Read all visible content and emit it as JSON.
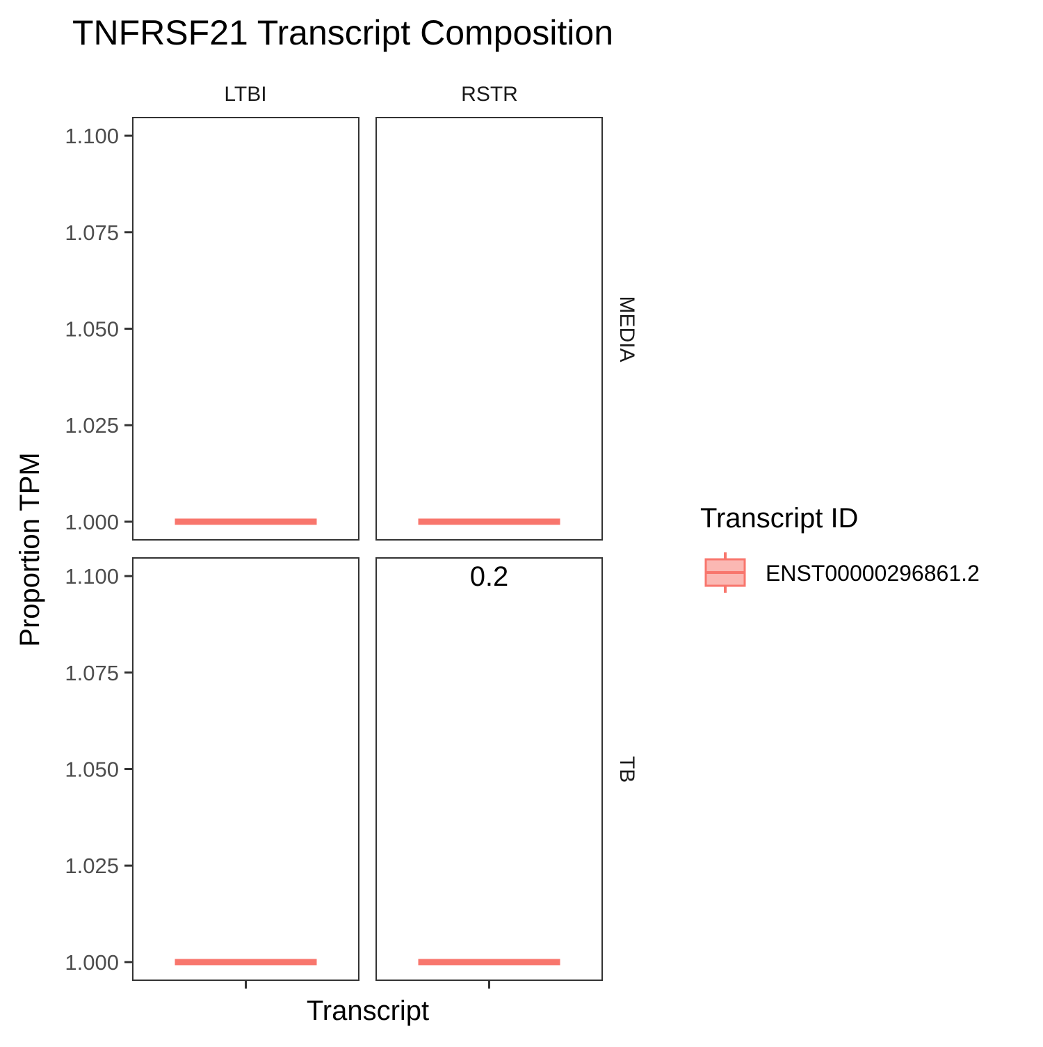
{
  "chart_data": {
    "type": "box",
    "title": "TNFRSF21 Transcript Composition",
    "xlabel": "Transcript",
    "ylabel": "Proportion TPM",
    "ylim": [
      0.9953,
      1.1047
    ],
    "yticks": [
      1.0,
      1.025,
      1.05,
      1.075,
      1.1
    ],
    "ytick_labels": [
      "1.000",
      "1.025",
      "1.050",
      "1.075",
      "1.100"
    ],
    "facet_columns": [
      "LTBI",
      "RSTR"
    ],
    "facet_rows": [
      "MEDIA",
      "TB"
    ],
    "legend": {
      "title": "Transcript ID",
      "position": "right",
      "entries": [
        {
          "name": "ENST00000296861.2",
          "color": "#F8766D",
          "fill": "#FBB8B3"
        }
      ]
    },
    "panels": [
      {
        "column": "LTBI",
        "row": "MEDIA",
        "transcript": "ENST00000296861.2",
        "median": 1.0,
        "q1": 1.0,
        "q3": 1.0,
        "label": ""
      },
      {
        "column": "RSTR",
        "row": "MEDIA",
        "transcript": "ENST00000296861.2",
        "median": 1.0,
        "q1": 1.0,
        "q3": 1.0,
        "label": ""
      },
      {
        "column": "LTBI",
        "row": "TB",
        "transcript": "ENST00000296861.2",
        "median": 1.0,
        "q1": 1.0,
        "q3": 1.0,
        "label": ""
      },
      {
        "column": "RSTR",
        "row": "TB",
        "transcript": "ENST00000296861.2",
        "median": 1.0,
        "q1": 1.0,
        "q3": 1.0,
        "label": "0.2",
        "label_y": 1.1
      }
    ],
    "grid": false
  }
}
